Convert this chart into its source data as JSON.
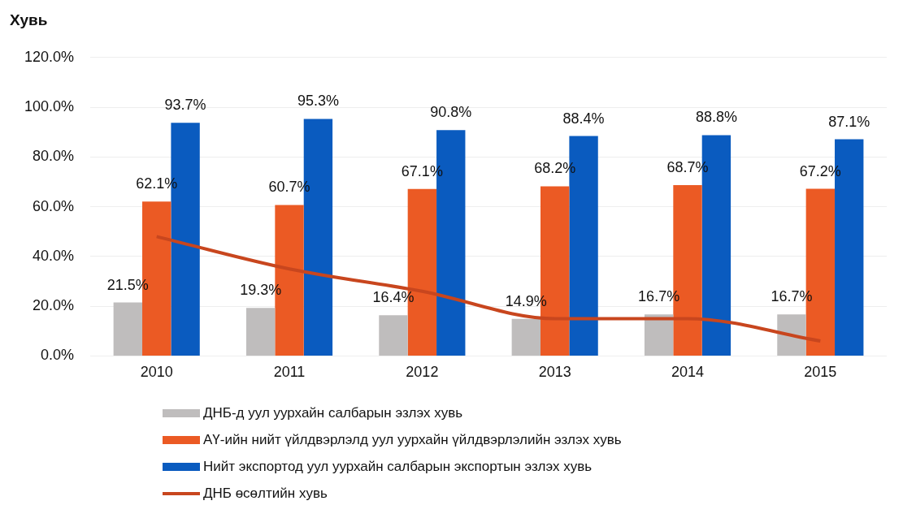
{
  "chart_data": {
    "type": "bar",
    "ylabel": "Хувь",
    "categories": [
      "2010",
      "2011",
      "2012",
      "2013",
      "2014",
      "2015"
    ],
    "series": [
      {
        "name": "ДНБ-д уул уурхайн салбарын эзлэх хувь",
        "color": "#bfbdbd",
        "values": [
          21.5,
          19.3,
          16.4,
          14.9,
          16.7,
          16.7
        ],
        "value_labels": [
          "21.5%",
          "19.3%",
          "16.4%",
          "14.9%",
          "16.7%",
          "16.7%"
        ]
      },
      {
        "name": "АҮ-ийн нийт үйлдвэрлэлд уул уурхайн үйлдвэрлэлийн эзлэх хувь",
        "color": "#eb5a24",
        "values": [
          62.1,
          60.7,
          67.1,
          68.2,
          68.7,
          67.2
        ],
        "value_labels": [
          "62.1%",
          "60.7%",
          "67.1%",
          "68.2%",
          "68.7%",
          "67.2%"
        ]
      },
      {
        "name": "Нийт экспортод уул уурхайн салбарын экспортын эзлэх хувь",
        "color": "#0a5bbf",
        "values": [
          93.7,
          95.3,
          90.8,
          88.4,
          88.8,
          87.1
        ],
        "value_labels": [
          "93.7%",
          "95.3%",
          "90.8%",
          "88.4%",
          "88.8%",
          "87.1%"
        ]
      },
      {
        "name": "ДНБ өсөлтийн хувь",
        "type": "line",
        "color": "#c8461e",
        "values": [
          48,
          35,
          26,
          15,
          15,
          6
        ]
      }
    ],
    "ylim": [
      0,
      120
    ],
    "yticks": [
      {
        "value": 0,
        "label": "0.0%"
      },
      {
        "value": 20,
        "label": "20.0%"
      },
      {
        "value": 40,
        "label": "40.0%"
      },
      {
        "value": 60,
        "label": "60.0%"
      },
      {
        "value": 80,
        "label": "80.0%"
      },
      {
        "value": 100,
        "label": "100.0%"
      },
      {
        "value": 120,
        "label": "120.0%"
      }
    ],
    "grid": "y",
    "legend": "bottom",
    "marker": "none",
    "line_style": "solid"
  }
}
